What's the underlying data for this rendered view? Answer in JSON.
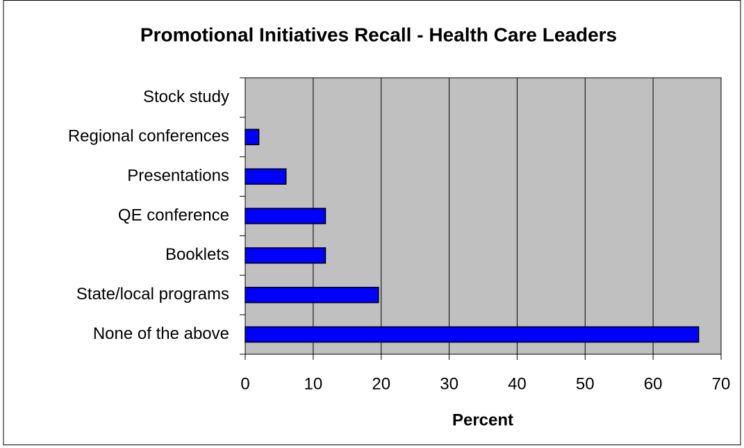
{
  "chart_data": {
    "type": "bar",
    "horizontal": true,
    "title": "Promotional Initiatives Recall - Health Care Leaders",
    "x_label": "Percent",
    "categories": [
      "Stock study",
      "Regional conferences",
      "Presentations",
      "QE conference",
      "Booklets",
      "State/local programs",
      "None of the above"
    ],
    "values": [
      0,
      2,
      6,
      11.8,
      11.8,
      19.6,
      66.7
    ],
    "color": "#0000ff",
    "xlim": [
      0,
      70
    ],
    "xticks": [
      0,
      10,
      20,
      30,
      40,
      50,
      60,
      70
    ],
    "grid": true
  }
}
